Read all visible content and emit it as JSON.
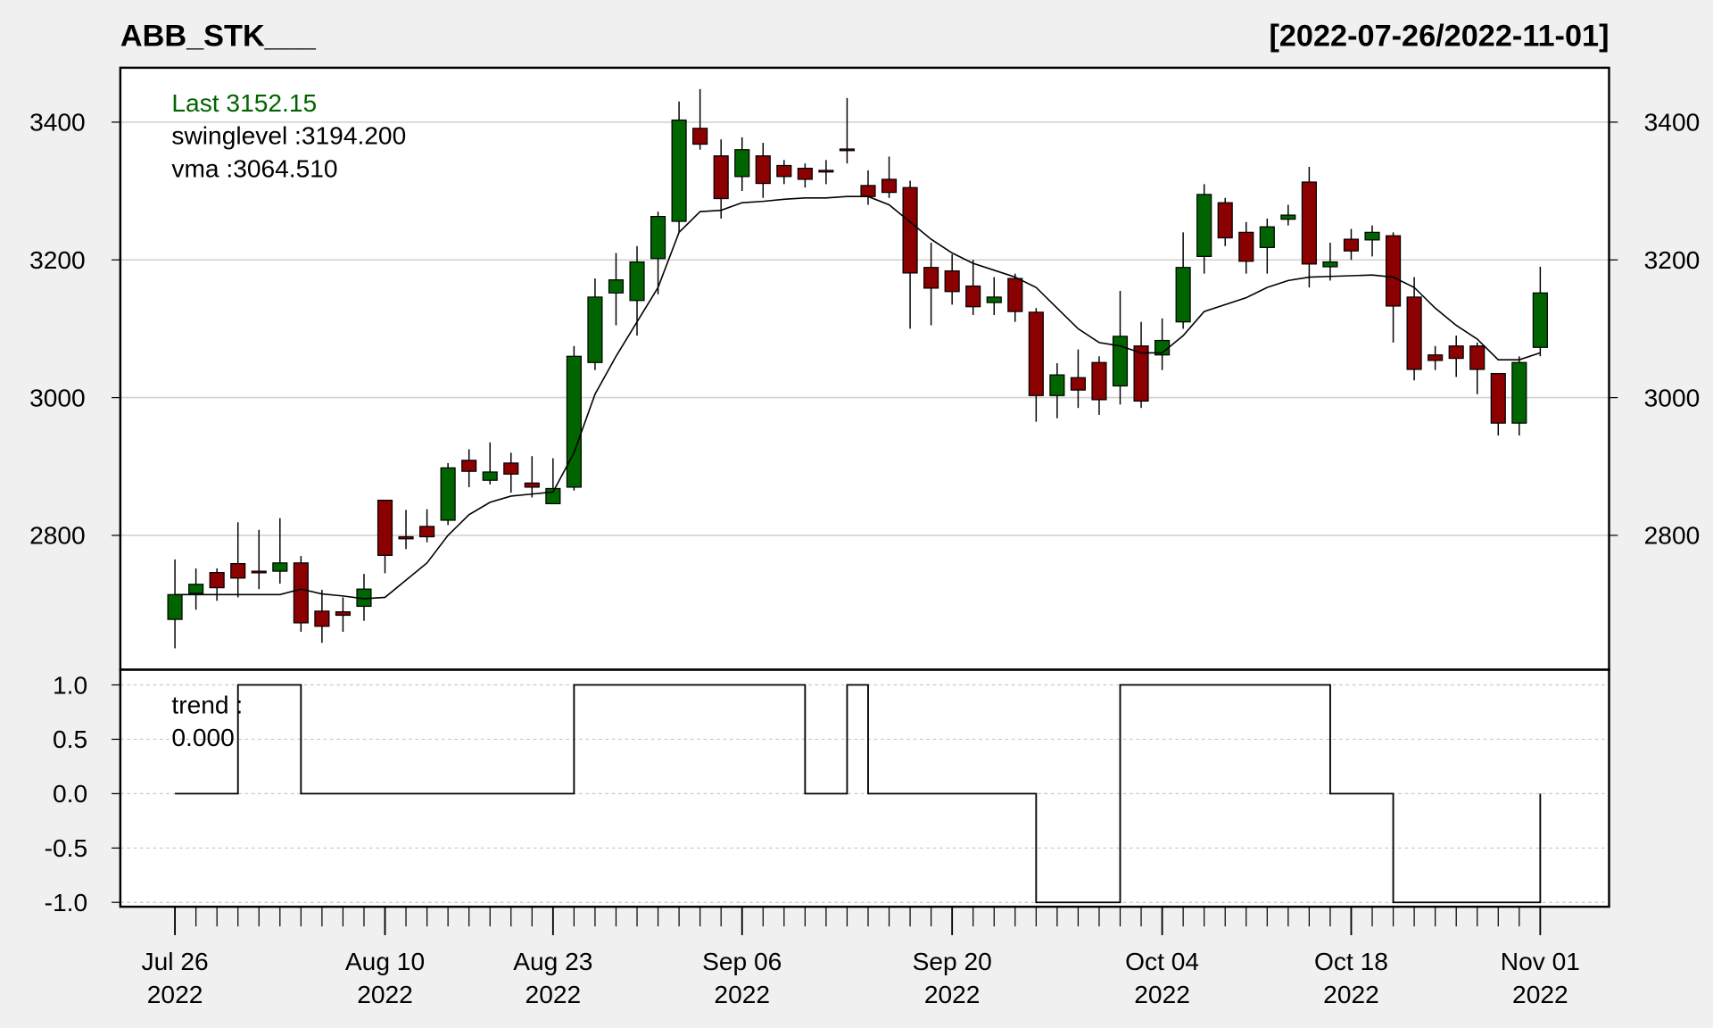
{
  "chart_data": [
    {
      "type": "candlestick",
      "title": "ABB_STK___",
      "subtitle": "[2022-07-26/2022-11-01]",
      "annotations": [
        "Last 3152.15",
        "swinglevel :3194.200",
        "vma :3064.510"
      ],
      "categories": [
        "Jul 26\n2022",
        null,
        null,
        null,
        null,
        null,
        null,
        null,
        null,
        null,
        "Aug 10\n2022",
        null,
        null,
        null,
        null,
        null,
        null,
        null,
        "Aug 23\n2022",
        null,
        null,
        null,
        null,
        null,
        null,
        null,
        null,
        "Sep 06\n2022",
        null,
        null,
        null,
        null,
        null,
        null,
        null,
        null,
        null,
        "Sep 20\n2022",
        null,
        null,
        null,
        null,
        null,
        null,
        null,
        null,
        null,
        "Oct 04\n2022",
        null,
        null,
        null,
        null,
        null,
        null,
        null,
        null,
        "Oct 18\n2022",
        null,
        null,
        null,
        null,
        null,
        null,
        null,
        null,
        "Nov 01\n2022"
      ],
      "open": [
        2678,
        2716,
        2746,
        2759,
        2748,
        2748,
        2760,
        2690,
        2689,
        2697,
        2851,
        2798,
        2813,
        2822,
        2909,
        2880,
        2905,
        2876,
        2846,
        2870,
        3051,
        3152,
        3141,
        3202,
        3256,
        3391,
        3351,
        3321,
        3351,
        3337,
        3333,
        3330,
        3361,
        3308,
        3317,
        3305,
        3189,
        3184,
        3162,
        3138,
        3173,
        3124,
        3003,
        3029,
        3051,
        3017,
        3075,
        3062,
        3110,
        3205,
        3283,
        3240,
        3218,
        3259,
        3313,
        3190,
        3230,
        3229,
        3235,
        3146,
        3062,
        3075,
        3075,
        3035,
        2963,
        3073
      ],
      "high": [
        2765,
        2752,
        2752,
        2819,
        2808,
        2825,
        2770,
        2721,
        2710,
        2744,
        2851,
        2837,
        2838,
        2905,
        2925,
        2935,
        2920,
        2915,
        2912,
        3075,
        3173,
        3210,
        3220,
        3270,
        3430,
        3448,
        3375,
        3378,
        3370,
        3345,
        3340,
        3345,
        3435,
        3330,
        3350,
        3315,
        3225,
        3208,
        3200,
        3175,
        3180,
        3130,
        3050,
        3070,
        3060,
        3155,
        3110,
        3115,
        3240,
        3310,
        3290,
        3255,
        3260,
        3280,
        3335,
        3225,
        3245,
        3250,
        3240,
        3175,
        3075,
        3090,
        3080,
        3035,
        3060,
        3190
      ],
      "low": [
        2636,
        2692,
        2705,
        2710,
        2722,
        2730,
        2660,
        2644,
        2660,
        2676,
        2745,
        2780,
        2790,
        2815,
        2870,
        2874,
        2862,
        2855,
        2846,
        2865,
        3040,
        3105,
        3090,
        3150,
        3240,
        3360,
        3260,
        3300,
        3290,
        3310,
        3305,
        3310,
        3340,
        3280,
        3290,
        3100,
        3105,
        3135,
        3120,
        3120,
        3110,
        2965,
        2970,
        2985,
        2975,
        2990,
        2985,
        3040,
        3100,
        3180,
        3220,
        3180,
        3180,
        3250,
        3160,
        3170,
        3200,
        3205,
        3080,
        3025,
        3040,
        3030,
        3005,
        2945,
        2945,
        3060
      ],
      "close": [
        2714,
        2729,
        2724,
        2738,
        2746,
        2760,
        2673,
        2668,
        2684,
        2722,
        2771,
        2795,
        2798,
        2898,
        2893,
        2892,
        2889,
        2870,
        2868,
        3060,
        3146,
        3171,
        3197,
        3263,
        3403,
        3368,
        3289,
        3360,
        3311,
        3321,
        3317,
        3329,
        3360,
        3292,
        3298,
        3181,
        3159,
        3154,
        3132,
        3146,
        3125,
        3003,
        3033,
        3011,
        2997,
        3089,
        2995,
        3083,
        3189,
        3295,
        3232,
        3198,
        3248,
        3265,
        3194,
        3197,
        3213,
        3240,
        3133,
        3041,
        3054,
        3057,
        3041,
        2963,
        3051,
        3152
      ],
      "up_color": "#006400",
      "down_color": "#8b0000",
      "series": [
        {
          "name": "vma",
          "color": "#000000",
          "values": [
            2714,
            2714,
            2714,
            2714,
            2714,
            2714,
            2722,
            2715,
            2712,
            2708,
            2710,
            2735,
            2760,
            2800,
            2830,
            2848,
            2857,
            2860,
            2863,
            2920,
            3005,
            3060,
            3110,
            3160,
            3240,
            3270,
            3272,
            3283,
            3285,
            3288,
            3290,
            3290,
            3292,
            3292,
            3280,
            3255,
            3230,
            3210,
            3195,
            3185,
            3175,
            3160,
            3130,
            3100,
            3080,
            3075,
            3065,
            3065,
            3090,
            3125,
            3135,
            3145,
            3160,
            3170,
            3175,
            3176,
            3177,
            3178,
            3175,
            3160,
            3130,
            3105,
            3085,
            3055,
            3055,
            3065
          ]
        }
      ],
      "ylim": [
        2605,
        3479
      ],
      "yticks": [
        2800,
        3000,
        3200,
        3400
      ],
      "grid": true
    },
    {
      "type": "step",
      "annotations": [
        "trend :",
        "0.000"
      ],
      "values": [
        0,
        0,
        0,
        1,
        1,
        1,
        0,
        0,
        0,
        0,
        0,
        0,
        0,
        0,
        0,
        0,
        0,
        0,
        0,
        1,
        1,
        1,
        1,
        1,
        1,
        1,
        1,
        1,
        1,
        1,
        0,
        0,
        1,
        0,
        0,
        0,
        0,
        0,
        0,
        0,
        0,
        -1,
        -1,
        -1,
        -1,
        1,
        1,
        1,
        1,
        1,
        1,
        1,
        1,
        1,
        1,
        0,
        0,
        0,
        -1,
        -1,
        -1,
        -1,
        -1,
        -1,
        -1,
        0
      ],
      "color": "#000000",
      "ylim": [
        -1.04,
        1.14
      ],
      "yticks": [
        {
          "value": 1,
          "label": "1.0"
        },
        {
          "value": 0.5,
          "label": "0.5"
        },
        {
          "value": 0,
          "label": "0.0"
        },
        {
          "value": -0.5,
          "label": "-0.5"
        },
        {
          "value": -1,
          "label": "-1.0"
        }
      ],
      "grid": true
    }
  ]
}
